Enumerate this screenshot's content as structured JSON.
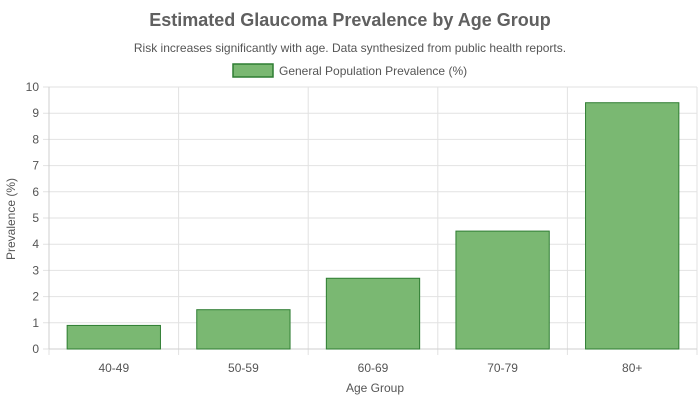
{
  "chart_data": {
    "type": "bar",
    "title": "Estimated Glaucoma Prevalence by Age Group",
    "subtitle": "Risk increases significantly with age. Data synthesized from public health reports.",
    "xlabel": "Age Group",
    "ylabel": "Prevalence (%)",
    "categories": [
      "40-49",
      "50-59",
      "60-69",
      "70-79",
      "80+"
    ],
    "series": [
      {
        "name": "General Population Prevalence (%)",
        "values": [
          0.9,
          1.5,
          2.7,
          4.5,
          9.4
        ]
      }
    ],
    "ylim": [
      0,
      10
    ],
    "yticks": [
      0,
      1,
      2,
      3,
      4,
      5,
      6,
      7,
      8,
      9,
      10
    ],
    "grid": true,
    "legend_position": "top-center",
    "colors": {
      "bar_fill": "#7ab872",
      "bar_stroke": "#2e7d32"
    }
  }
}
